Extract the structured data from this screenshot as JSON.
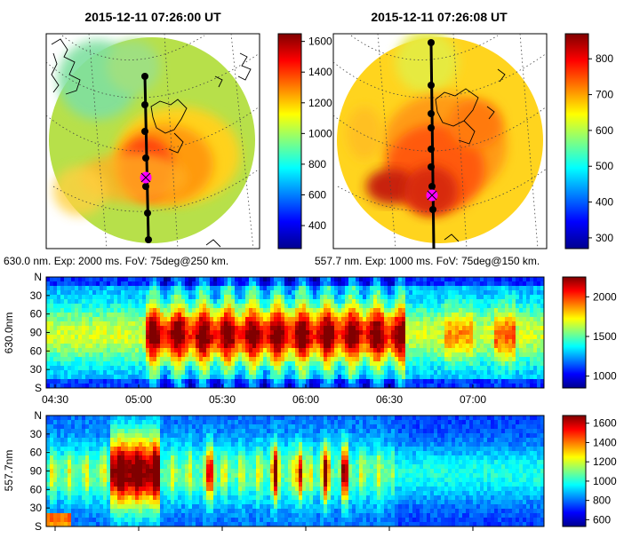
{
  "panels": {
    "left_map": {
      "title": "2015-12-11 07:26:00 UT",
      "caption": "630.0 nm. Exp: 2000 ms. FoV: 75deg@250 km.",
      "colorbar_ticks": [
        "1600",
        "1400",
        "1200",
        "1000",
        "800",
        "600",
        "400"
      ]
    },
    "right_map": {
      "title": "2015-12-11 07:26:08 UT",
      "caption": "557.7 nm. Exp: 1000 ms. FoV: 75deg@150 km.",
      "colorbar_ticks": [
        "800",
        "700",
        "600",
        "500",
        "400",
        "300"
      ]
    },
    "keogram_630": {
      "ylabel": "630.0nm",
      "y_ticks": [
        "N",
        "30",
        "60",
        "90",
        "60",
        "30",
        "S"
      ],
      "x_ticks": [
        "04:30",
        "05:00",
        "05:30",
        "06:00",
        "06:30",
        "07:00"
      ],
      "colorbar_ticks": [
        "2000",
        "1500",
        "1000"
      ]
    },
    "keogram_557": {
      "ylabel": "557.7nm",
      "y_ticks": [
        "N",
        "30",
        "60",
        "90",
        "60",
        "30",
        "S"
      ],
      "colorbar_ticks": [
        "1600",
        "1400",
        "1200",
        "1000",
        "800",
        "600"
      ]
    }
  },
  "colors": {
    "marker": "#ff00ff",
    "track": "#000000"
  },
  "chart_data": [
    {
      "type": "heatmap",
      "title": "2015-12-11 07:26:00 UT",
      "subtitle": "630.0 nm. Exp: 2000 ms. FoV: 75deg@250 km.",
      "colorbar_range": [
        250,
        1650
      ],
      "colormap": "jet"
    },
    {
      "type": "heatmap",
      "title": "2015-12-11 07:26:08 UT",
      "subtitle": "557.7 nm. Exp: 1000 ms. FoV: 75deg@150 km.",
      "colorbar_range": [
        270,
        870
      ],
      "colormap": "jet"
    },
    {
      "type": "heatmap",
      "ylabel": "630.0nm",
      "x_ticks": [
        "04:30",
        "05:00",
        "05:30",
        "06:00",
        "06:30",
        "07:00"
      ],
      "y_ticks": [
        "N",
        "30",
        "60",
        "90",
        "60",
        "30",
        "S"
      ],
      "colorbar_range": [
        850,
        2250
      ],
      "colormap": "jet"
    },
    {
      "type": "heatmap",
      "ylabel": "557.7nm",
      "y_ticks": [
        "N",
        "30",
        "60",
        "90",
        "60",
        "30",
        "S"
      ],
      "colorbar_range": [
        530,
        1680
      ],
      "colormap": "jet"
    }
  ]
}
